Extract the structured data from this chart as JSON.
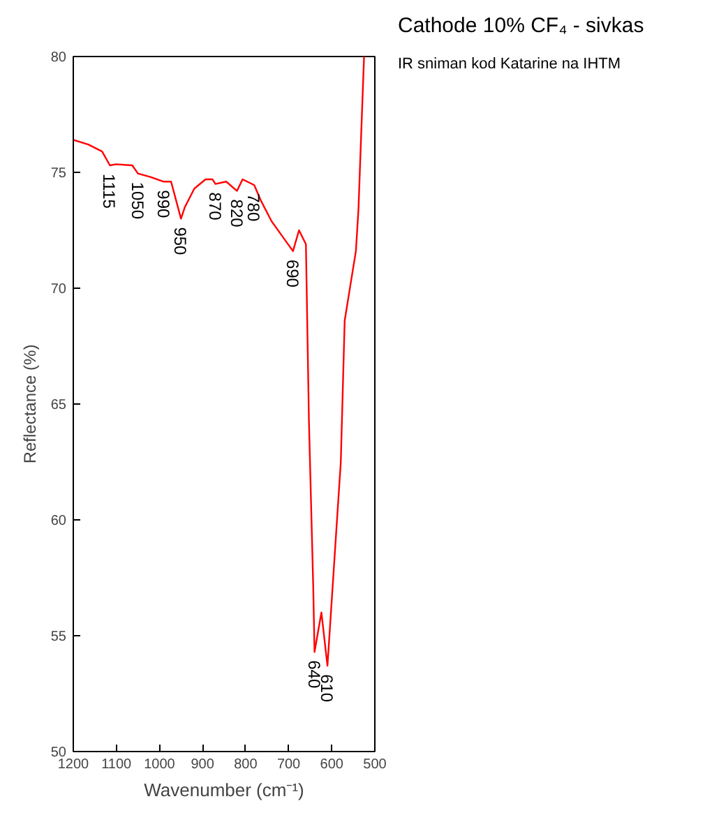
{
  "chart_data": {
    "type": "line",
    "title": "Cathode 10% CF₄ - sivkas",
    "xlabel": "Wavenumber (cm⁻¹)",
    "ylabel": "Reflectance (%)",
    "annotations": [
      "IR sniman kod Katarine na IHTM",
      {
        "text": "1115",
        "x": 1115,
        "y": 75.3
      },
      {
        "text": "1050",
        "x": 1050,
        "y": 74.95
      },
      {
        "text": "990",
        "x": 990,
        "y": 74.6
      },
      {
        "text": "950",
        "x": 950,
        "y": 73.0
      },
      {
        "text": "870",
        "x": 870,
        "y": 74.5
      },
      {
        "text": "820",
        "x": 820,
        "y": 74.2
      },
      {
        "text": "780",
        "x": 780,
        "y": 74.45
      },
      {
        "text": "690",
        "x": 690,
        "y": 71.6
      },
      {
        "text": "640",
        "x": 640,
        "y": 54.3
      },
      {
        "text": "610",
        "x": 610,
        "y": 53.7
      }
    ],
    "x": [
      1200,
      1165,
      1133,
      1115,
      1101,
      1063,
      1050,
      1021,
      990,
      973,
      950,
      941,
      919,
      893,
      877,
      870,
      845,
      820,
      807,
      780,
      765,
      740,
      717,
      690,
      676,
      660,
      653,
      643,
      640,
      624,
      610,
      579,
      570,
      557,
      544,
      538,
      531,
      525
    ],
    "series": [
      {
        "color": "#ff0000",
        "values": [
          76.4,
          76.2,
          75.9,
          75.3,
          75.35,
          75.3,
          74.95,
          74.8,
          74.6,
          74.6,
          73.0,
          73.5,
          74.3,
          74.7,
          74.7,
          74.5,
          74.6,
          74.2,
          74.7,
          74.45,
          73.8,
          72.9,
          72.3,
          71.6,
          72.5,
          71.9,
          64.3,
          57.1,
          54.3,
          56.0,
          53.7,
          62.5,
          68.6,
          70.1,
          71.6,
          73.4,
          77.0,
          80.0
        ]
      }
    ],
    "xlim": [
      1200,
      500
    ],
    "ylim": [
      50,
      80
    ],
    "xticks": [
      1200,
      1100,
      1000,
      900,
      800,
      700,
      600,
      500
    ],
    "yticks": [
      50,
      55,
      60,
      65,
      70,
      75,
      80
    ],
    "grid": false
  }
}
